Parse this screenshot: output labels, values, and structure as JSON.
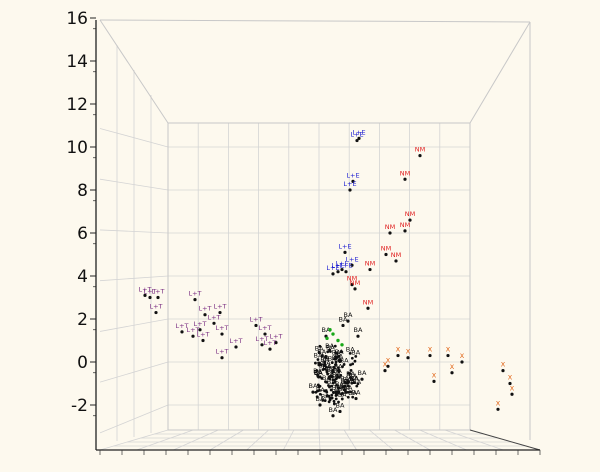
{
  "chart_data": {
    "type": "scatter",
    "title": "",
    "xlabel": "",
    "ylabel": "",
    "ylim": [
      -3.2,
      16
    ],
    "yticks": [
      -2,
      0,
      2,
      4,
      6,
      8,
      10,
      12,
      14,
      16
    ],
    "ytick_labels": [
      "-2",
      "0",
      "2",
      "4",
      "6",
      "8",
      "10",
      "12",
      "14",
      "16"
    ],
    "grid": true,
    "legend": "none",
    "colors": {
      "background": "#fdf9ee",
      "L+E": "#1e1ed2",
      "NM": "#e02020",
      "L+T": "#7a2e82",
      "X": "#e06010",
      "BA": "#202020",
      "green": "#18a818"
    },
    "point_labels": [
      "L+E",
      "NM",
      "L+T",
      "X",
      "BA"
    ],
    "notes": "3D scatter shown from a frontal view; only the vertical axis has tick labels, so only approximate vertical-axis values are listed and the horizontal placement of each group is given in relative plot units."
  }
}
